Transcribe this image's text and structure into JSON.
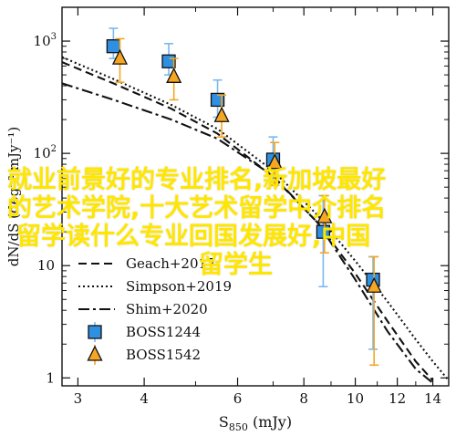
{
  "chart_data": {
    "type": "scatter",
    "xlabel_main": "S",
    "xlabel_sub": "850",
    "xlabel_unit": " (mJy)",
    "ylabel": "dN/dS (deg⁻² mJy⁻¹)",
    "x_scale": "log",
    "y_scale": "log",
    "xlim": [
      2.8,
      15
    ],
    "ylim": [
      0.85,
      2000
    ],
    "x_ticks": [
      3,
      4,
      6,
      8,
      10,
      12,
      14
    ],
    "y_ticks": [
      {
        "value": 1,
        "label": "1"
      },
      {
        "value": 10,
        "label": "10"
      },
      {
        "value": 100,
        "label": "10",
        "exp": "2"
      },
      {
        "value": 1000,
        "label": "10",
        "exp": "3"
      }
    ],
    "series": [
      {
        "name": "Geach+2017",
        "kind": "line",
        "style": "dashed",
        "x": [
          2.8,
          3.5,
          4.5,
          5.5,
          7.0,
          8.5,
          10.0,
          11.5,
          13.0,
          14.0
        ],
        "y": [
          650,
          420,
          250,
          150,
          62,
          24,
          8.5,
          3.2,
          1.4,
          0.95
        ]
      },
      {
        "name": "Simpson+2019",
        "kind": "line",
        "style": "dotted",
        "x": [
          2.8,
          3.5,
          4.5,
          5.5,
          7.0,
          8.5,
          10.0,
          11.5,
          13.0,
          14.0,
          15.0
        ],
        "y": [
          720,
          460,
          270,
          165,
          70,
          28,
          11,
          4.8,
          2.2,
          1.4,
          0.95
        ]
      },
      {
        "name": "Shim+2020",
        "kind": "line",
        "style": "dashdot",
        "x": [
          2.8,
          3.5,
          4.5,
          5.5,
          7.0,
          8.5,
          10.0,
          11.5,
          13.0,
          14.0
        ],
        "y": [
          420,
          300,
          200,
          135,
          63,
          24,
          7.5,
          2.6,
          1.2,
          0.9
        ]
      },
      {
        "name": "BOSS1244",
        "kind": "points",
        "marker": "square",
        "color": "#2f8fe0",
        "err_color": "#7ab8ee",
        "points": [
          {
            "x": 3.5,
            "y": 900,
            "lo": 700,
            "hi": 1300
          },
          {
            "x": 4.45,
            "y": 660,
            "lo": 500,
            "hi": 950
          },
          {
            "x": 5.5,
            "y": 300,
            "lo": 210,
            "hi": 450
          },
          {
            "x": 7.0,
            "y": 88,
            "lo": 55,
            "hi": 140
          },
          {
            "x": 8.7,
            "y": 20,
            "lo": 6.5,
            "hi": 42
          },
          {
            "x": 10.8,
            "y": 7.5,
            "lo": 1.8,
            "hi": 12
          }
        ]
      },
      {
        "name": "BOSS1542",
        "kind": "points",
        "marker": "triangle",
        "color": "#f5a623",
        "err_color": "#f5a623",
        "points": [
          {
            "x": 3.6,
            "y": 700,
            "lo": 430,
            "hi": 1050
          },
          {
            "x": 4.55,
            "y": 480,
            "lo": 300,
            "hi": 700
          },
          {
            "x": 5.6,
            "y": 215,
            "lo": 140,
            "hi": 330
          },
          {
            "x": 7.05,
            "y": 82,
            "lo": 52,
            "hi": 125
          },
          {
            "x": 8.75,
            "y": 27,
            "lo": 13,
            "hi": 42
          },
          {
            "x": 10.85,
            "y": 6.5,
            "lo": 1.3,
            "hi": 12
          }
        ]
      }
    ],
    "legend_position": "bottom-left",
    "grid": false
  },
  "watermark": {
    "lines": [
      "就业前景好的专业排名,新加坡最好",
      "的艺术学院,十大艺术留学中介排名",
      "留学读什么专业回国发展好,中国",
      "留学生"
    ]
  }
}
